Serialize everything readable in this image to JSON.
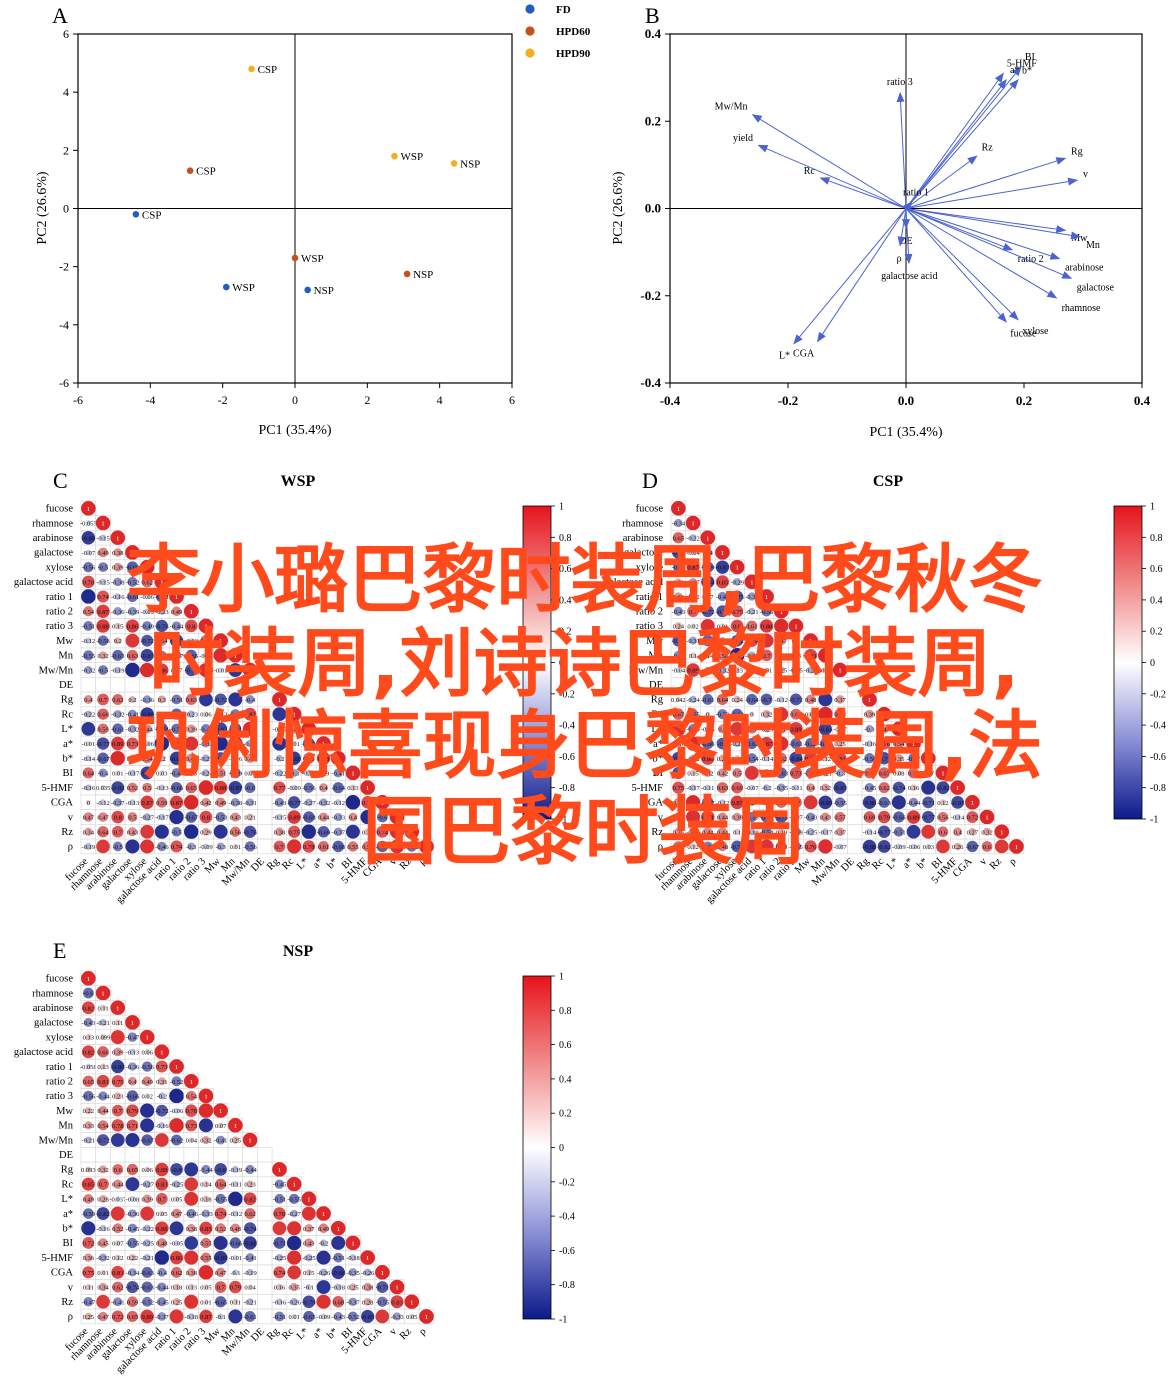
{
  "panels": {
    "A": {
      "letter": "A",
      "xlabel": "PC1 (35.4%)",
      "ylabel": "PC2 (26.6%)",
      "xticks": [
        "-6",
        "-4",
        "-2",
        "0",
        "2",
        "4",
        "6"
      ],
      "yticks": [
        "6",
        "4",
        "2",
        "0",
        "-2",
        "-4",
        "-6"
      ],
      "legend": [
        {
          "label": "FD",
          "color": "#1f5fbf"
        },
        {
          "label": "HPD60",
          "color": "#c4501c"
        },
        {
          "label": "HPD90",
          "color": "#f2b01e"
        }
      ]
    },
    "B": {
      "letter": "B",
      "xlabel": "PC1 (35.4%)",
      "ylabel": "PC2 (26.6%)",
      "xticks": [
        "-0.4",
        "-0.2",
        "0.0",
        "0.2",
        "0.4"
      ],
      "yticks": [
        "0.4",
        "0.2",
        "0.0",
        "-0.2",
        "-0.4"
      ]
    },
    "C": {
      "letter": "C",
      "title": "WSP"
    },
    "D": {
      "letter": "D",
      "title": "CSP"
    },
    "E": {
      "letter": "E",
      "title": "NSP"
    }
  },
  "variables": [
    "fucose",
    "rhamnose",
    "arabinose",
    "galactose",
    "xylose",
    "galactose acid",
    "ratio 1",
    "ratio 2",
    "ratio 3",
    "Mw",
    "Mn",
    "Mw/Mn",
    "DE",
    "Rg",
    "Rc",
    "L*",
    "a*",
    "b*",
    "BI",
    "5-HMF",
    "CGA",
    "v",
    "Rz",
    "ρ"
  ],
  "colorbar_ticks": [
    "1",
    "0.8",
    "0.6",
    "0.4",
    "0.2",
    "0",
    "-0.2",
    "-0.4",
    "-0.6",
    "-0.8",
    "-1"
  ],
  "overlay": {
    "line1": "李小璐巴黎时装周,巴黎秋冬",
    "line2": "时装周,刘诗诗巴黎时装周,",
    "line3": "巩俐惊喜现身巴黎时装周,法",
    "line4": "国巴黎时装周"
  },
  "chart_data": [
    {
      "type": "scatter",
      "title": "",
      "xlabel": "PC1 (35.4%)",
      "ylabel": "PC2 (26.6%)",
      "xlim": [
        -6,
        6
      ],
      "ylim": [
        -6,
        6
      ],
      "legend": "top-right outside",
      "series": [
        {
          "name": "FD",
          "color": "#1f5fbf",
          "points": [
            {
              "x": -4.4,
              "y": -0.2,
              "label": "CSP"
            },
            {
              "x": -1.9,
              "y": -2.7,
              "label": "WSP"
            },
            {
              "x": 0.35,
              "y": -2.8,
              "label": "NSP"
            }
          ]
        },
        {
          "name": "HPD60",
          "color": "#c4501c",
          "points": [
            {
              "x": -2.9,
              "y": 1.3,
              "label": "CSP"
            },
            {
              "x": 0.0,
              "y": -1.7,
              "label": "WSP"
            },
            {
              "x": 3.1,
              "y": -2.25,
              "label": "NSP"
            }
          ]
        },
        {
          "name": "HPD90",
          "color": "#f2b01e",
          "points": [
            {
              "x": -1.2,
              "y": 4.8,
              "label": "CSP"
            },
            {
              "x": 2.75,
              "y": 1.8,
              "label": "WSP"
            },
            {
              "x": 4.4,
              "y": 1.55,
              "label": "NSP"
            }
          ]
        }
      ]
    },
    {
      "type": "scatter",
      "title": "",
      "xlabel": "PC1 (35.4%)",
      "ylabel": "PC2 (26.6%)",
      "xlim": [
        -0.4,
        0.4
      ],
      "ylim": [
        -0.4,
        0.4
      ],
      "vectors": [
        {
          "label": "5-HMF",
          "x": 0.165,
          "y": 0.31
        },
        {
          "label": "BI",
          "x": 0.195,
          "y": 0.325
        },
        {
          "label": "a*",
          "x": 0.17,
          "y": 0.295
        },
        {
          "label": "b*",
          "x": 0.19,
          "y": 0.295
        },
        {
          "label": "ratio 3",
          "x": -0.01,
          "y": 0.265
        },
        {
          "label": "Mw/Mn",
          "x": -0.26,
          "y": 0.215
        },
        {
          "label": "yield",
          "x": -0.25,
          "y": 0.145
        },
        {
          "label": "Rc",
          "x": -0.145,
          "y": 0.07
        },
        {
          "label": "Rz",
          "x": 0.12,
          "y": 0.12
        },
        {
          "label": "Rg",
          "x": 0.27,
          "y": 0.115
        },
        {
          "label": "v",
          "x": 0.29,
          "y": 0.065
        },
        {
          "label": "ratio 1",
          "x": 0.01,
          "y": 0.015
        },
        {
          "label": "Mw",
          "x": 0.27,
          "y": -0.05
        },
        {
          "label": "Mn",
          "x": 0.295,
          "y": -0.065
        },
        {
          "label": "ratio 2",
          "x": 0.18,
          "y": -0.095
        },
        {
          "label": "arabinose",
          "x": 0.26,
          "y": -0.115
        },
        {
          "label": "galactose",
          "x": 0.28,
          "y": -0.16
        },
        {
          "label": "rhamnose",
          "x": 0.255,
          "y": -0.205
        },
        {
          "label": "xylose",
          "x": 0.19,
          "y": -0.255
        },
        {
          "label": "fucose",
          "x": 0.17,
          "y": -0.26
        },
        {
          "label": "DE",
          "x": 0.0,
          "y": -0.045
        },
        {
          "label": "ρ",
          "x": -0.01,
          "y": -0.085
        },
        {
          "label": "galactose acid",
          "x": 0.005,
          "y": -0.125
        },
        {
          "label": "L*",
          "x": -0.19,
          "y": -0.31
        },
        {
          "label": "CGA",
          "x": -0.15,
          "y": -0.305
        }
      ]
    },
    {
      "type": "heatmap",
      "title": "WSP",
      "variables": [
        "fucose",
        "rhamnose",
        "arabinose",
        "galactose",
        "xylose",
        "galactose acid",
        "ratio 1",
        "ratio 2",
        "ratio 3",
        "Mw",
        "Mn",
        "Mw/Mn",
        "DE",
        "Rg",
        "Rc",
        "L*",
        "a*",
        "b*",
        "BI",
        "5-HMF",
        "CGA",
        "v",
        "Rz",
        "ρ"
      ],
      "range": [
        -1,
        1
      ],
      "readable_values": {
        "rhamnose": [
          -0.055
        ],
        "arabinose": [
          -0.88,
          -0.15
        ],
        "galactose": [
          null,
          null,
          0.38
        ],
        "galactose acid": [
          null,
          -0.15
        ],
        "ratio 2": [
          0.54,
          0.87,
          -0.36
        ],
        "ratio 3": [
          null,
          0.88
        ],
        "Rg": [
          null,
          0.7,
          0.62
        ],
        "5-HMF": [
          null,
          0.035
        ],
        "CGA": [
          0.0,
          -0.12,
          -0.37,
          -0.13
        ],
        "v": [
          null,
          0.47,
          0.8
        ],
        "Rz": [
          0.34,
          0.64
        ]
      }
    },
    {
      "type": "heatmap",
      "title": "CSP",
      "variables": [
        "fucose",
        "rhamnose",
        "arabinose",
        "galactose",
        "xylose",
        "galactose acid",
        "ratio 1",
        "ratio 2",
        "ratio 3",
        "Mw",
        "Mn",
        "Mw/Mn",
        "DE",
        "Rg",
        "Rc",
        "L*",
        "a*",
        "b*",
        "BI",
        "5-HMF",
        "CGA",
        "v",
        "Rz",
        "ρ"
      ],
      "range": [
        -1,
        1
      ],
      "readable_values": {
        "Rg": [
          0.042,
          null,
          null,
          0.64
        ],
        "5-HMF": [
          0.75,
          -0.17,
          -0.11
        ],
        "BI": [
          null,
          0.15,
          0.32,
          0.42
        ],
        "CGA": [
          0.42
        ],
        "Rz": [
          0.35,
          -0.23
        ]
      }
    },
    {
      "type": "heatmap",
      "title": "NSP",
      "variables": [
        "fucose",
        "rhamnose",
        "arabinose",
        "galactose",
        "xylose",
        "galactose acid",
        "ratio 1",
        "ratio 2",
        "ratio 3",
        "Mw",
        "Mn",
        "Mw/Mn",
        "DE",
        "Rg",
        "Rc",
        "L*",
        "a*",
        "b*",
        "BI",
        "5-HMF",
        "CGA",
        "v",
        "Rz",
        "ρ"
      ],
      "range": [
        -1,
        1
      ],
      "readable_values": {
        "galactose": [
          -0.43,
          -0.21,
          0.11
        ],
        "xylose": [
          0.13,
          0.099
        ],
        "galactose acid": [
          0.82,
          0.66,
          0.39
        ],
        "ratio 1": [
          -0.058
        ],
        "ratio 2": [
          0.65,
          0.81,
          0.75,
          0.4
        ],
        "Mw": [
          0.22,
          0.44,
          0.7,
          0.79
        ],
        "Mn": [
          0.33,
          0.54,
          0.78,
          0.71
        ],
        "Rg": [
          0.093,
          0.32,
          0.6
        ],
        "Rc": [
          0.85,
          0.7,
          0.44
        ],
        "L*": [
          0.49,
          0.28,
          -0.037
        ],
        "v": [
          0.11,
          0.34,
          0.62
        ],
        "ρ": [
          0.25,
          0.47,
          0.72
        ]
      }
    }
  ]
}
